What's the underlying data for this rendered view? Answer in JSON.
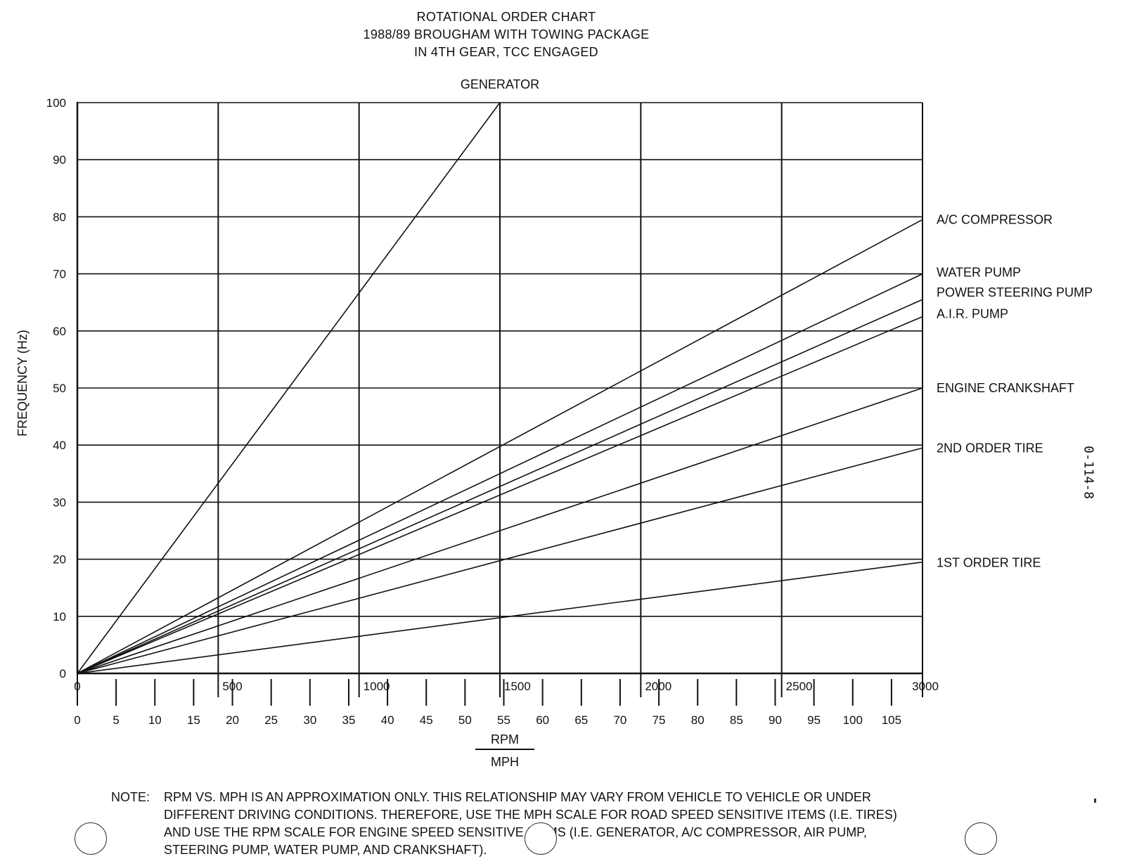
{
  "chart_data": {
    "type": "line",
    "title": [
      "ROTATIONAL ORDER CHART",
      "1988/89 BROUGHAM WITH TOWING PACKAGE",
      "IN 4TH GEAR, TCC ENGAGED"
    ],
    "ylabel": "FREQUENCY (Hz)",
    "xlabel_top": "RPM",
    "xlabel_bottom": "MPH",
    "xlim": [
      0,
      3000
    ],
    "ylim": [
      0,
      100
    ],
    "grid": true,
    "y_ticks": [
      "0",
      "10",
      "20",
      "30",
      "40",
      "50",
      "60",
      "70",
      "80",
      "90",
      "100"
    ],
    "rpm_ticks": [
      "0",
      "500",
      "1000",
      "1500",
      "2000",
      "2500",
      "3000"
    ],
    "mph_ticks": [
      "0",
      "5",
      "10",
      "15",
      "20",
      "25",
      "30",
      "35",
      "40",
      "45",
      "50",
      "55",
      "60",
      "65",
      "70",
      "75",
      "80",
      "85",
      "90",
      "95",
      "100",
      "105"
    ],
    "series": [
      {
        "name": "GENERATOR",
        "x": [
          0,
          1500
        ],
        "values": [
          0,
          100
        ]
      },
      {
        "name": "A/C COMPRESSOR",
        "x": [
          0,
          3000
        ],
        "values": [
          0,
          79.5
        ]
      },
      {
        "name": "WATER PUMP",
        "x": [
          0,
          3000
        ],
        "values": [
          0,
          70
        ]
      },
      {
        "name": "POWER STEERING PUMP",
        "x": [
          0,
          3000
        ],
        "values": [
          0,
          65.5
        ]
      },
      {
        "name": "A.I.R. PUMP",
        "x": [
          0,
          3000
        ],
        "values": [
          0,
          62.5
        ]
      },
      {
        "name": "ENGINE CRANKSHAFT",
        "x": [
          0,
          3000
        ],
        "values": [
          0,
          50
        ]
      },
      {
        "name": "2ND ORDER TIRE",
        "x": [
          0,
          3000
        ],
        "values": [
          0,
          39.5
        ]
      },
      {
        "name": "1ST ORDER TIRE",
        "x": [
          0,
          3000
        ],
        "values": [
          0,
          19.5
        ]
      }
    ]
  },
  "note": {
    "label": "NOTE:",
    "text": "RPM VS. MPH IS AN APPROXIMATION ONLY. THIS RELATIONSHIP MAY VARY FROM VEHICLE TO VEHICLE OR UNDER DIFFERENT DRIVING CONDITIONS. THEREFORE, USE THE MPH SCALE FOR ROAD SPEED SENSITIVE ITEMS (I.E. TIRES) AND USE THE RPM SCALE FOR ENGINE SPEED SENSITIVE ITEMS (I.E. GENERATOR, A/C COMPRESSOR, AIR PUMP, STEERING PUMP, WATER PUMP, AND CRANKSHAFT)."
  },
  "ref_code": "0-114-8",
  "colors": {
    "ink": "#111111",
    "paper": "#ffffff"
  }
}
